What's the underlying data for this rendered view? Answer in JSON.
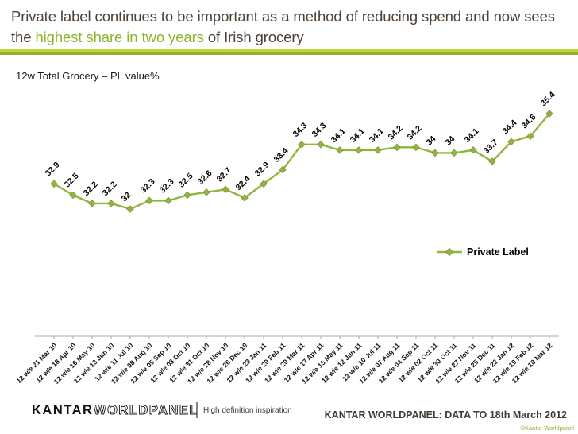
{
  "title": {
    "part1": "Private label continues to be important as a method of reducing spend and now sees the ",
    "highlight": "highest share in two years",
    "part2": " of Irish grocery"
  },
  "subtitle": "12w Total Grocery – PL value%",
  "legend": {
    "label": "Private Label"
  },
  "footer": {
    "logo_kantar": "KANTAR",
    "logo_worldpanel": "WORLDPANEL",
    "tagline": "High definition inspiration",
    "right_text": "KANTAR WORLDPANEL: DATA TO 18th March 2012",
    "copyright": "©Kantar Worldpanel"
  },
  "colors": {
    "accent_green": "#8BB42B",
    "line_green": "#93B43E",
    "marker_edge": "#6F8F30",
    "title_text": "#4E4136"
  },
  "chart_data": {
    "type": "line",
    "title": "12w Total Grocery – PL value%",
    "categories": [
      "12 w/e 21 Mar 10",
      "12 w/e 18 Apr 10",
      "12 w/e 16 May 10",
      "12 w/e 13 Jun 10",
      "12 w/e 11 Jul 10",
      "12 w/e 08 Aug 10",
      "12 w/e 05 Sep 10",
      "12 w/e 03 Oct 10",
      "12 w/e 31 Oct 10",
      "12 w/e 28 Nov 10",
      "12 w/e 26 Dec 10",
      "12 w/e 23 Jan 11",
      "12 w/e 20 Feb 11",
      "12 w/e 20 Mar 11",
      "12 w/e 17 Apr 11",
      "12 w/e 15 May 11",
      "12 w/e 12 Jun 11",
      "12 w/e 10 Jul 11",
      "12 w/e 07 Aug 11",
      "12 w/e 04 Sep 11",
      "12 w/e 02 Oct 11",
      "12 w/e 30 Oct 11",
      "12 w/e 27 Nov 11",
      "12 w/e 25 Dec 11",
      "12 w/e 22 Jan 12",
      "12 w/e 19 Feb 12",
      "12 w/e 18 Mar 12"
    ],
    "series": [
      {
        "name": "Private Label",
        "values": [
          32.9,
          32.5,
          32.2,
          32.2,
          32,
          32.3,
          32.3,
          32.5,
          32.6,
          32.7,
          32.4,
          32.9,
          33.4,
          34.3,
          34.3,
          34.1,
          34.1,
          34.1,
          34.2,
          34.2,
          34,
          34,
          34.1,
          33.7,
          34.4,
          34.6,
          35.4
        ]
      }
    ],
    "ylim": [
      31.5,
      36
    ],
    "grid": false,
    "data_labels": true,
    "marker": "diamond",
    "x_label_rotation": 45,
    "legend_position": "right-middle"
  }
}
